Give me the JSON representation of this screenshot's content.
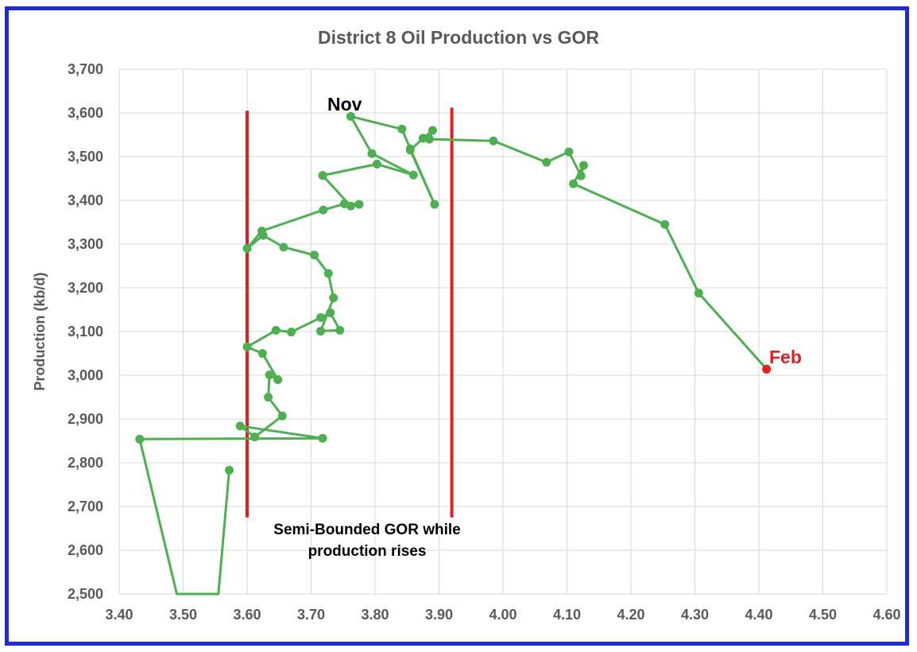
{
  "chart_data": {
    "type": "scatter",
    "title": "District 8 Oil Production vs GOR",
    "xlabel": "",
    "ylabel": "Production (kb/d)",
    "xlim": [
      3.4,
      4.6
    ],
    "ylim": [
      2500,
      3700
    ],
    "x_ticks": [
      "3.40",
      "3.50",
      "3.60",
      "3.70",
      "3.80",
      "3.90",
      "4.00",
      "4.10",
      "4.20",
      "4.30",
      "4.40",
      "4.50",
      "4.60"
    ],
    "y_ticks": [
      "2,500",
      "2,600",
      "2,700",
      "2,800",
      "2,900",
      "3,000",
      "3,100",
      "3,200",
      "3,300",
      "3,400",
      "3,500",
      "3,600",
      "3,700"
    ],
    "grid": true,
    "series_color": "#4caf50",
    "last_point_color": "#e02020",
    "points": [
      [
        3.572,
        2783
      ],
      [
        3.555,
        2500
      ],
      [
        3.49,
        2500
      ],
      [
        3.432,
        2854
      ],
      [
        3.718,
        2856
      ],
      [
        3.589,
        2884
      ],
      [
        3.612,
        2859
      ],
      [
        3.655,
        2907
      ],
      [
        3.633,
        2950
      ],
      [
        3.635,
        3001
      ],
      [
        3.648,
        2990
      ],
      [
        3.624,
        3050
      ],
      [
        3.6,
        3065
      ],
      [
        3.645,
        3103
      ],
      [
        3.669,
        3099
      ],
      [
        3.715,
        3132
      ],
      [
        3.73,
        3143
      ],
      [
        3.745,
        3103
      ],
      [
        3.715,
        3101
      ],
      [
        3.735,
        3177
      ],
      [
        3.727,
        3233
      ],
      [
        3.705,
        3275
      ],
      [
        3.657,
        3293
      ],
      [
        3.625,
        3320
      ],
      [
        3.6,
        3290
      ],
      [
        3.623,
        3330
      ],
      [
        3.719,
        3378
      ],
      [
        3.752,
        3392
      ],
      [
        3.775,
        3391
      ],
      [
        3.762,
        3387
      ],
      [
        3.718,
        3457
      ],
      [
        3.803,
        3483
      ],
      [
        3.86,
        3458
      ],
      [
        3.795,
        3507
      ],
      [
        3.762,
        3592
      ],
      [
        3.842,
        3563
      ],
      [
        3.855,
        3518
      ],
      [
        3.893,
        3391
      ],
      [
        3.855,
        3515
      ],
      [
        3.875,
        3542
      ],
      [
        3.89,
        3560
      ],
      [
        3.885,
        3540
      ],
      [
        3.985,
        3536
      ],
      [
        4.068,
        3487
      ],
      [
        4.103,
        3511
      ],
      [
        4.122,
        3456
      ],
      [
        4.126,
        3480
      ],
      [
        4.11,
        3438
      ],
      [
        4.253,
        3345
      ],
      [
        4.306,
        3188
      ],
      [
        4.412,
        3014
      ]
    ],
    "annotations": {
      "start_label": "Nov",
      "end_label": "Feb",
      "bounds_note_line1": "Semi-Bounded GOR while",
      "bounds_note_line2": "production rises"
    },
    "bound_lines": [
      {
        "x": 3.6,
        "y_from": 2675,
        "y_to": 3605,
        "color": "#e02020"
      },
      {
        "x": 3.92,
        "y_from": 2675,
        "y_to": 3612,
        "color": "#e02020"
      }
    ]
  }
}
